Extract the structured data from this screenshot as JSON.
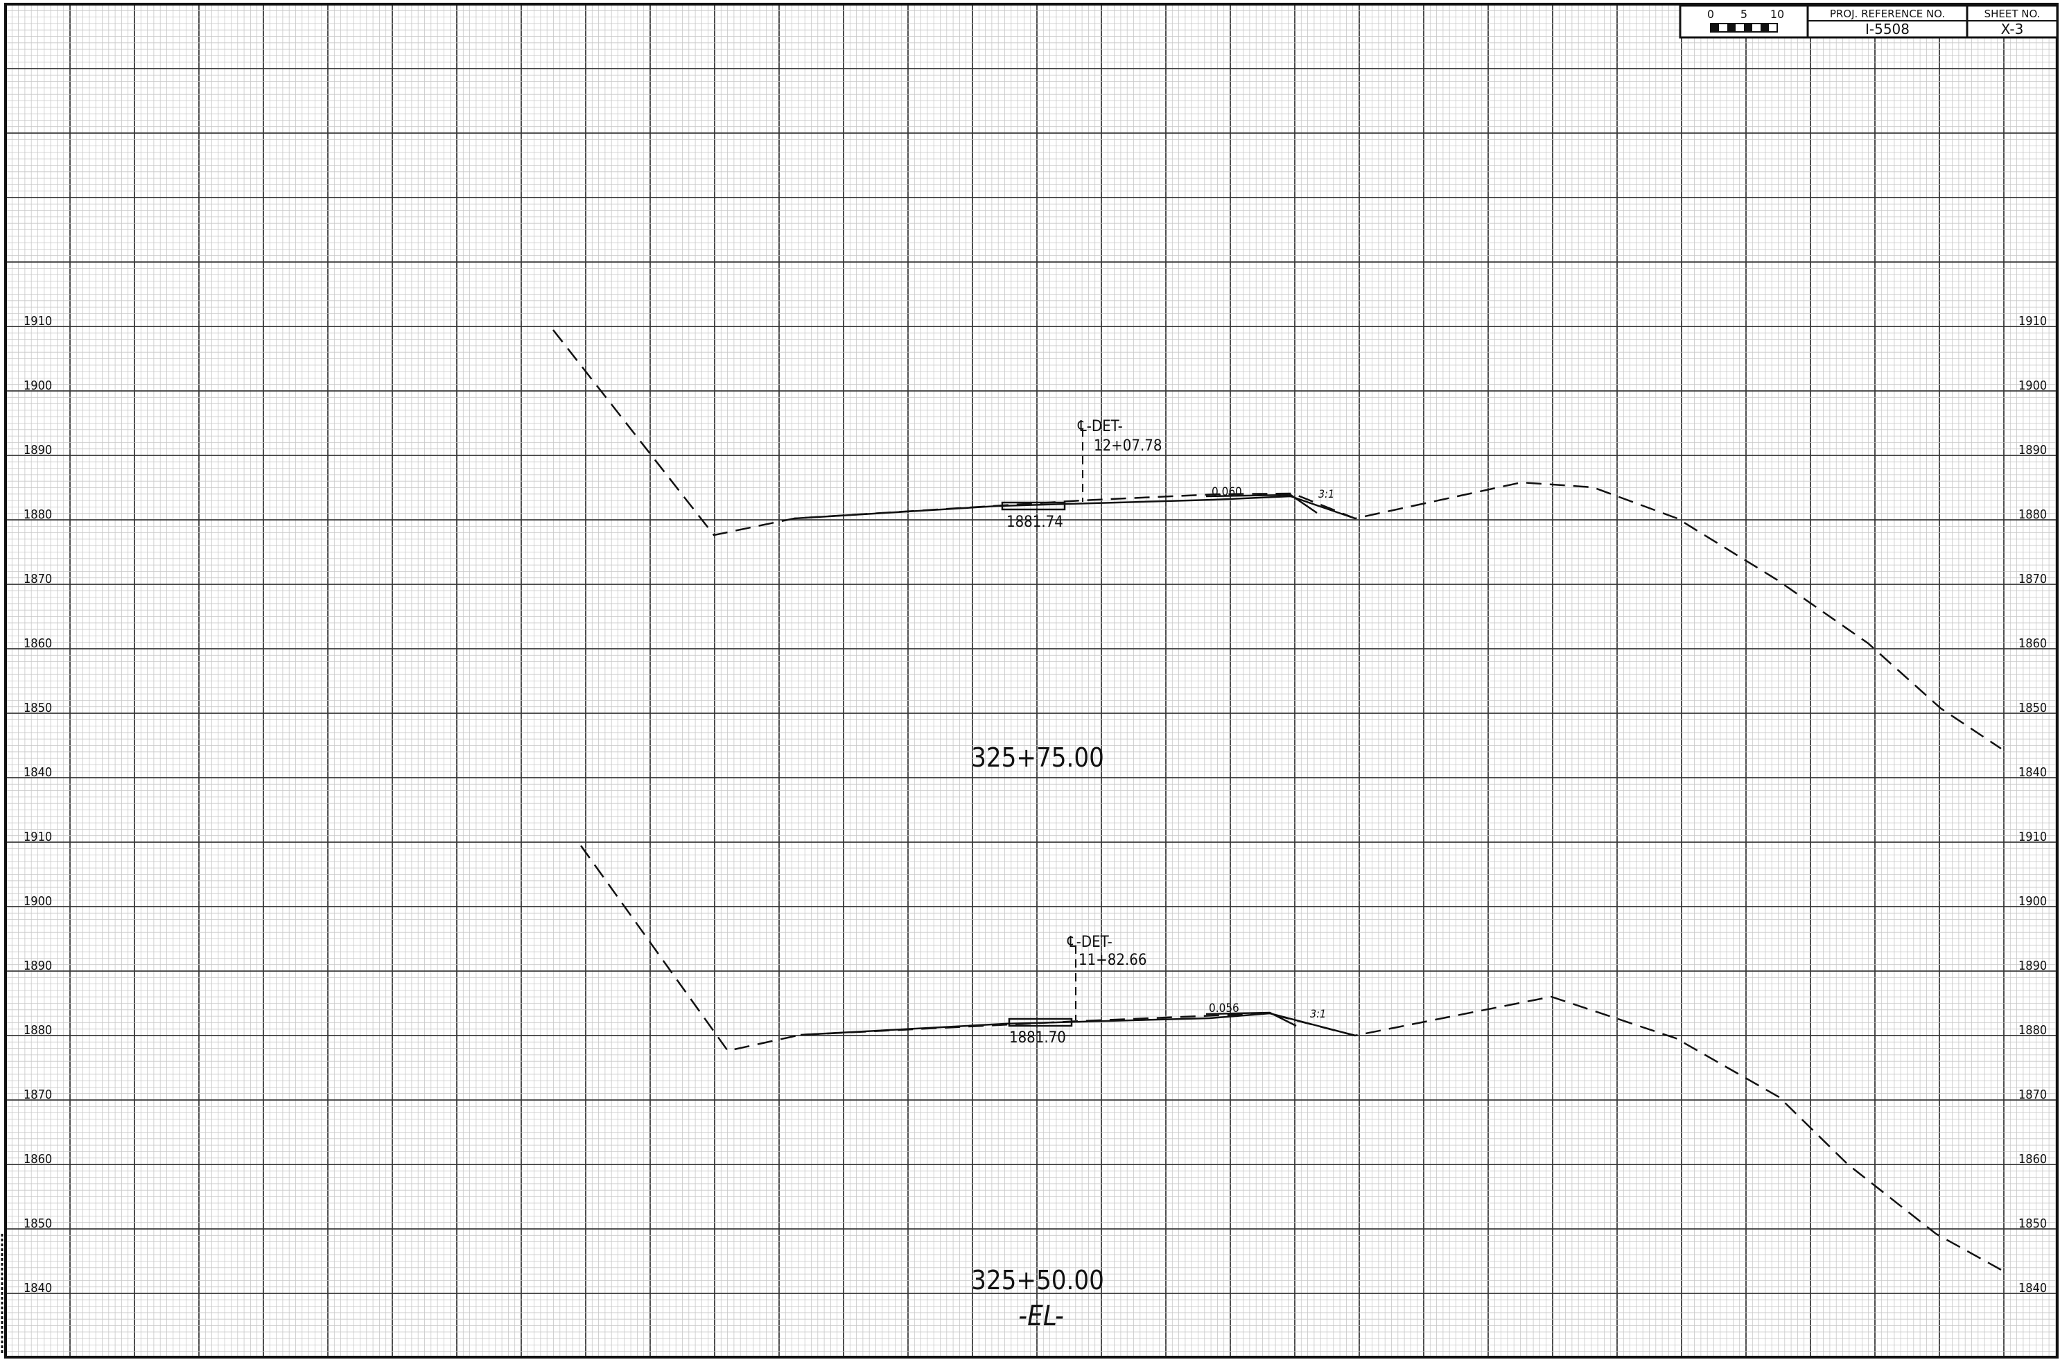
{
  "title_block": {
    "scale_ticks": [
      "0",
      "5",
      "10"
    ],
    "proj_reference_label": "PROJ. REFERENCE NO.",
    "proj_reference_value": "I-5508",
    "sheet_no_label": "SHEET NO.",
    "sheet_no_value": "X-3"
  },
  "sections": [
    {
      "station": "325+75.00",
      "elevation_labels": [
        "1910",
        "1900",
        "1890",
        "1880",
        "1870",
        "1860",
        "1850",
        "1840"
      ],
      "centerline_label": "℄-DET-",
      "centerline_station": "12+07.78",
      "centerline_elevation": "1881.74",
      "slope_label": "0.060",
      "side_slope_label": "3:1",
      "existing_ground": [
        {
          "offset": -48,
          "elev": 1909
        },
        {
          "offset": -30,
          "elev": 1877
        },
        {
          "offset": -20,
          "elev": 1880
        },
        {
          "offset": 0,
          "elev": 1882
        },
        {
          "offset": 40,
          "elev": 1885
        },
        {
          "offset": 55,
          "elev": 1880
        },
        {
          "offset": 70,
          "elev": 1870
        },
        {
          "offset": 90,
          "elev": 1851
        },
        {
          "offset": 96,
          "elev": 1845
        }
      ]
    },
    {
      "station": "325+50.00",
      "elevation_labels": [
        "1910",
        "1900",
        "1890",
        "1880",
        "1870",
        "1860",
        "1850",
        "1840"
      ],
      "centerline_label": "℄-DET-",
      "centerline_station": "11+82.66",
      "centerline_elevation": "1881.70",
      "slope_label": "0.056",
      "side_slope_label": "3:1",
      "baseline_tag": "-EL-",
      "existing_ground": [
        {
          "offset": -45,
          "elev": 1908
        },
        {
          "offset": -30,
          "elev": 1877
        },
        {
          "offset": -20,
          "elev": 1880
        },
        {
          "offset": 0,
          "elev": 1882
        },
        {
          "offset": 43,
          "elev": 1885
        },
        {
          "offset": 55,
          "elev": 1880
        },
        {
          "offset": 70,
          "elev": 1870
        },
        {
          "offset": 90,
          "elev": 1849
        },
        {
          "offset": 96,
          "elev": 1843
        }
      ]
    }
  ],
  "colors": {
    "grid_fine": "#c7c7c7",
    "grid_major": "#3a3a3a",
    "ink": "#111111"
  }
}
